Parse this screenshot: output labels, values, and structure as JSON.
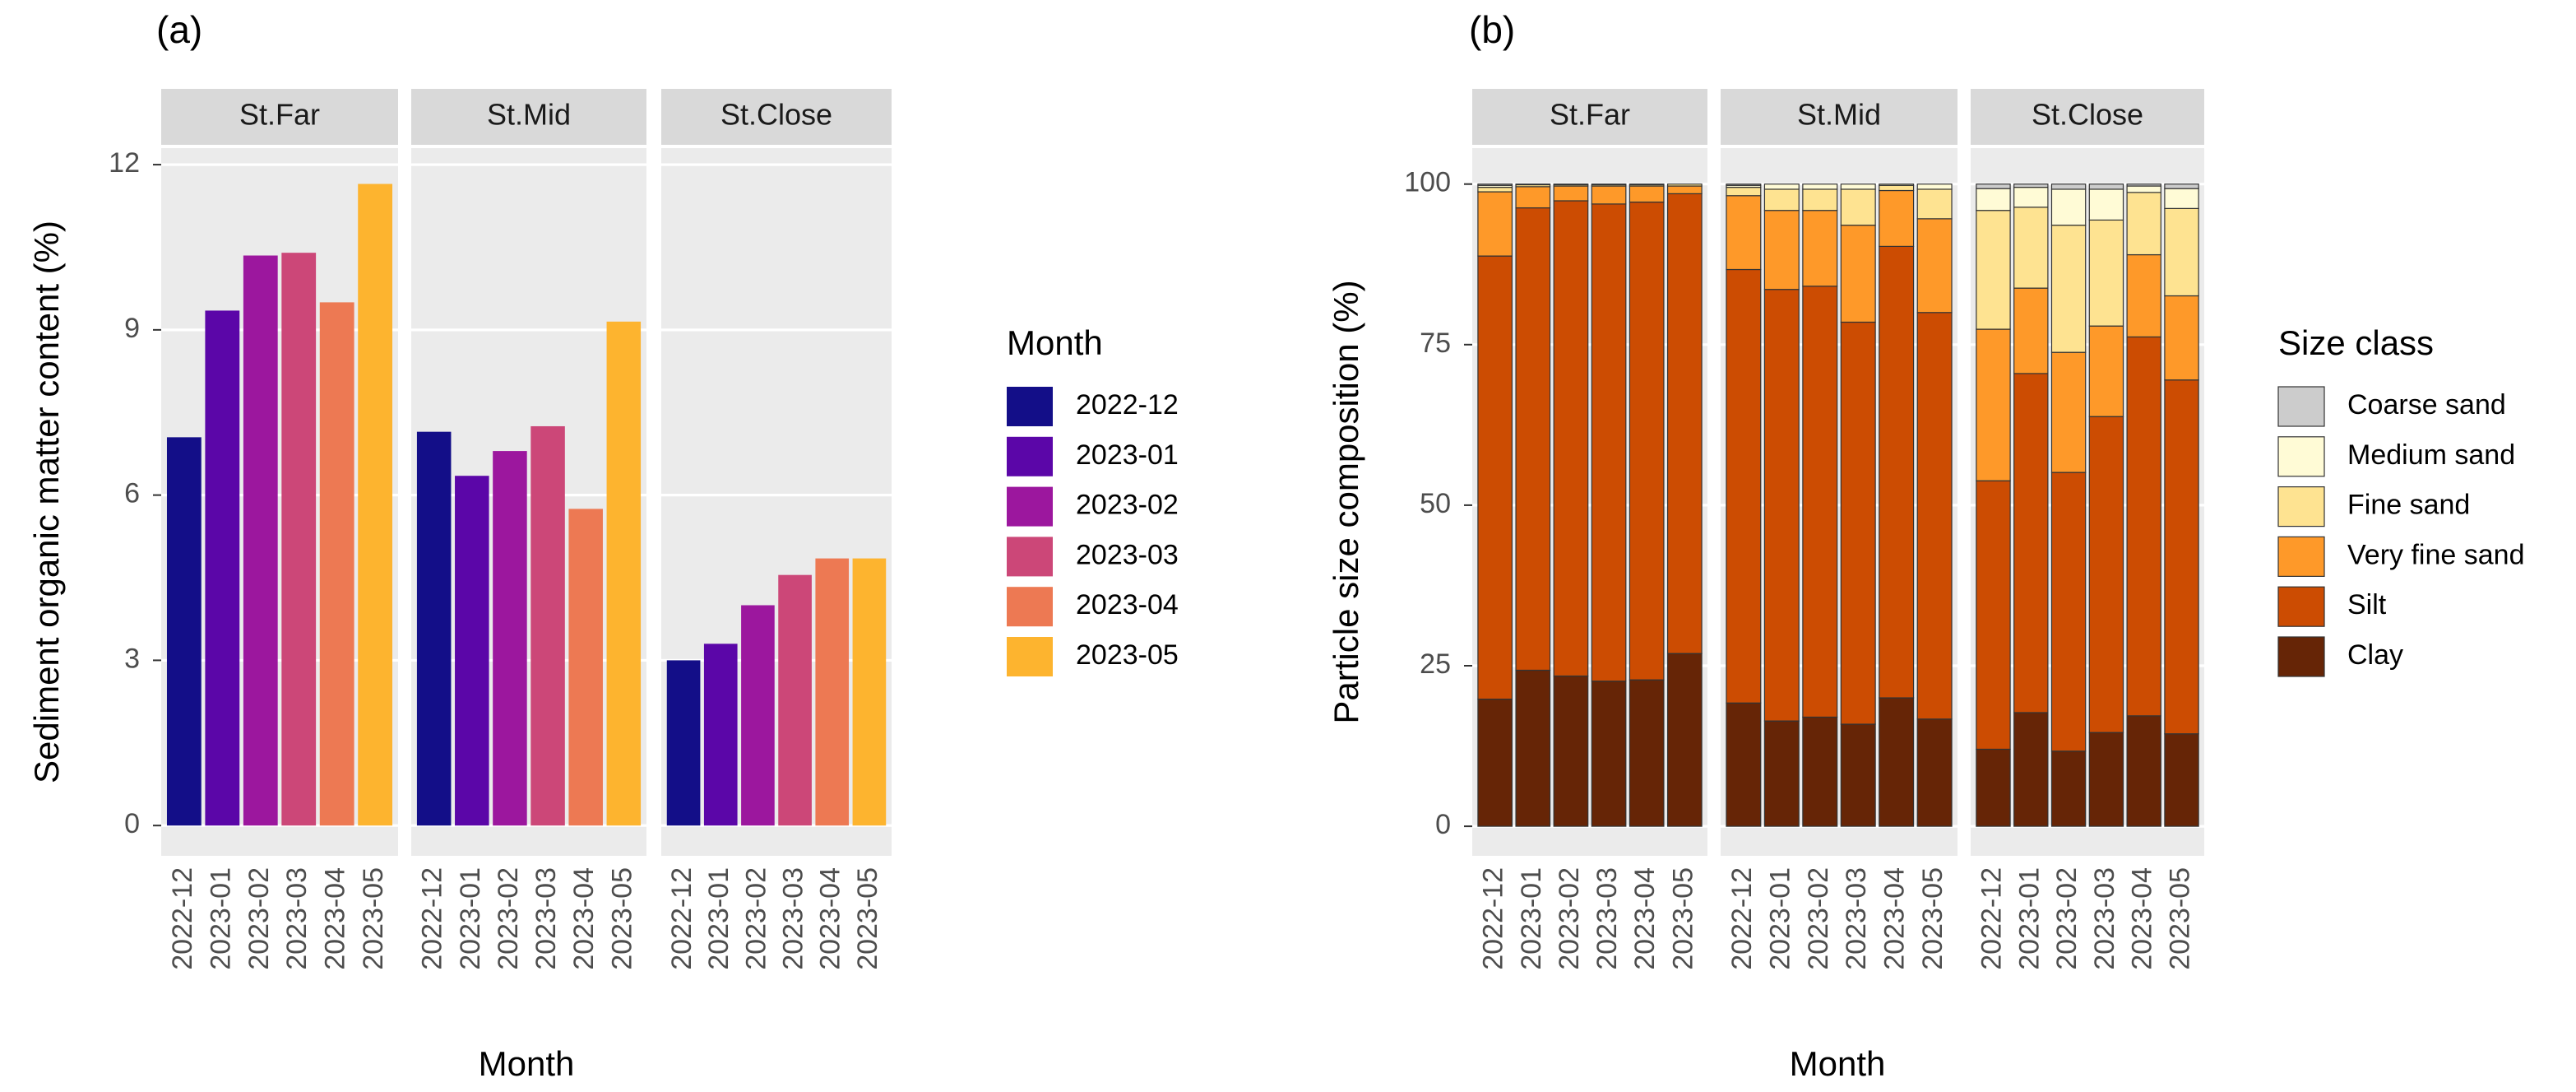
{
  "chart_data": [
    {
      "type": "bar",
      "label": "(a)",
      "y_label": "Sediment organic matter content (%)",
      "x_label": "Month",
      "legend_title": "Month",
      "facets": [
        "St.Far",
        "St.Mid",
        "St.Close"
      ],
      "categories": [
        "2022-12",
        "2023-01",
        "2023-02",
        "2023-03",
        "2023-04",
        "2023-05"
      ],
      "colors": [
        "#130e88",
        "#5b06a8",
        "#9c179e",
        "#cc4778",
        "#ed7953",
        "#fdb42f"
      ],
      "values": [
        [
          7.05,
          9.35,
          10.35,
          10.4,
          9.5,
          11.65
        ],
        [
          7.15,
          6.35,
          6.8,
          7.25,
          5.75,
          9.15
        ],
        [
          3.0,
          3.3,
          4.0,
          4.55,
          4.85,
          4.85
        ]
      ],
      "ylim": [
        -0.55,
        12.3
      ],
      "yticks": [
        0,
        3,
        6,
        9,
        12
      ],
      "grid": true
    },
    {
      "type": "stacked_bar",
      "label": "(b)",
      "y_label": "Particle size composition (%)",
      "x_label": "Month",
      "legend_title": "Size class",
      "facets": [
        "St.Far",
        "St.Mid",
        "St.Close"
      ],
      "categories": [
        "2022-12",
        "2023-01",
        "2023-02",
        "2023-03",
        "2023-04",
        "2023-05"
      ],
      "series": [
        {
          "name": "Clay",
          "color": "#662506",
          "values": [
            [
              19.8,
              24.3,
              23.4,
              22.6,
              22.8,
              26.9
            ],
            [
              19.2,
              16.4,
              17.0,
              15.9,
              20.0,
              16.7
            ],
            [
              12.0,
              17.7,
              11.7,
              14.6,
              17.2,
              14.4
            ]
          ]
        },
        {
          "name": "Silt",
          "color": "#cc4c02",
          "values": [
            [
              69.0,
              72.0,
              74.0,
              74.3,
              74.4,
              71.6
            ],
            [
              67.5,
              67.2,
              67.1,
              62.6,
              70.3,
              63.3
            ],
            [
              41.8,
              52.8,
              43.4,
              49.2,
              59.0,
              55.1
            ]
          ]
        },
        {
          "name": "Very fine sand",
          "color": "#fe9929",
          "values": [
            [
              10.0,
              3.3,
              2.3,
              2.8,
              2.5,
              1.2
            ],
            [
              11.5,
              12.3,
              11.8,
              15.1,
              8.7,
              14.6
            ],
            [
              23.6,
              13.3,
              18.7,
              14.1,
              12.8,
              13.1
            ]
          ]
        },
        {
          "name": "Fine sand",
          "color": "#fee391",
          "values": [
            [
              0.7,
              0.3,
              0.2,
              0.2,
              0.2,
              0.3
            ],
            [
              1.3,
              3.3,
              3.3,
              5.6,
              0.8,
              4.6
            ],
            [
              18.5,
              12.6,
              19.8,
              16.5,
              9.7,
              13.6
            ]
          ]
        },
        {
          "name": "Medium sand",
          "color": "#fffbd6",
          "values": [
            [
              0.3,
              0.1,
              0.1,
              0.1,
              0.1,
              0.0
            ],
            [
              0.3,
              0.8,
              0.8,
              0.8,
              0.2,
              0.8
            ],
            [
              3.4,
              3.1,
              5.6,
              4.8,
              1.0,
              3.1
            ]
          ]
        },
        {
          "name": "Coarse sand",
          "color": "#cccccc",
          "values": [
            [
              0.2,
              0.0,
              0.0,
              0.0,
              0.0,
              0.0
            ],
            [
              0.2,
              0.0,
              0.0,
              0.0,
              0.0,
              0.0
            ],
            [
              0.7,
              0.5,
              0.8,
              0.8,
              0.3,
              0.7
            ]
          ]
        }
      ],
      "ylim": [
        -4.6,
        105.6
      ],
      "yticks": [
        0,
        25,
        50,
        75,
        100
      ],
      "grid": true
    }
  ]
}
